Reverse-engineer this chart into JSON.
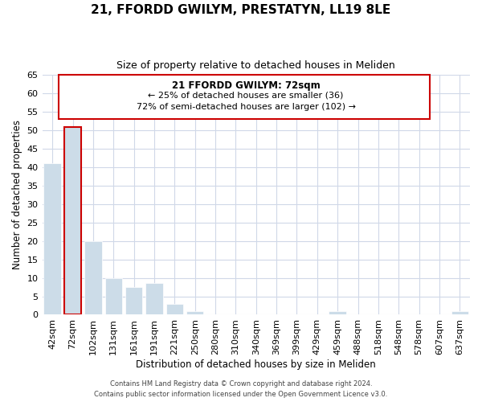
{
  "title": "21, FFORDD GWILYM, PRESTATYN, LL19 8LE",
  "subtitle": "Size of property relative to detached houses in Meliden",
  "xlabel": "Distribution of detached houses by size in Meliden",
  "ylabel": "Number of detached properties",
  "bar_labels": [
    "42sqm",
    "72sqm",
    "102sqm",
    "131sqm",
    "161sqm",
    "191sqm",
    "221sqm",
    "250sqm",
    "280sqm",
    "310sqm",
    "340sqm",
    "369sqm",
    "399sqm",
    "429sqm",
    "459sqm",
    "488sqm",
    "518sqm",
    "548sqm",
    "578sqm",
    "607sqm",
    "637sqm"
  ],
  "bar_values": [
    41,
    51,
    20,
    10,
    7.5,
    8.5,
    3,
    1,
    0,
    0,
    0,
    0,
    0,
    0,
    1,
    0,
    0,
    0,
    0,
    0,
    1
  ],
  "highlight_index": 1,
  "normal_color": "#ccdce8",
  "annotation_border_color": "#cc0000",
  "annotation_text_line1": "21 FFORDD GWILYM: 72sqm",
  "annotation_text_line2": "← 25% of detached houses are smaller (36)",
  "annotation_text_line3": "72% of semi-detached houses are larger (102) →",
  "ylim": [
    0,
    65
  ],
  "yticks": [
    0,
    5,
    10,
    15,
    20,
    25,
    30,
    35,
    40,
    45,
    50,
    55,
    60,
    65
  ],
  "footer_line1": "Contains HM Land Registry data © Crown copyright and database right 2024.",
  "footer_line2": "Contains public sector information licensed under the Open Government Licence v3.0.",
  "background_color": "#ffffff",
  "grid_color": "#d0d8e8"
}
